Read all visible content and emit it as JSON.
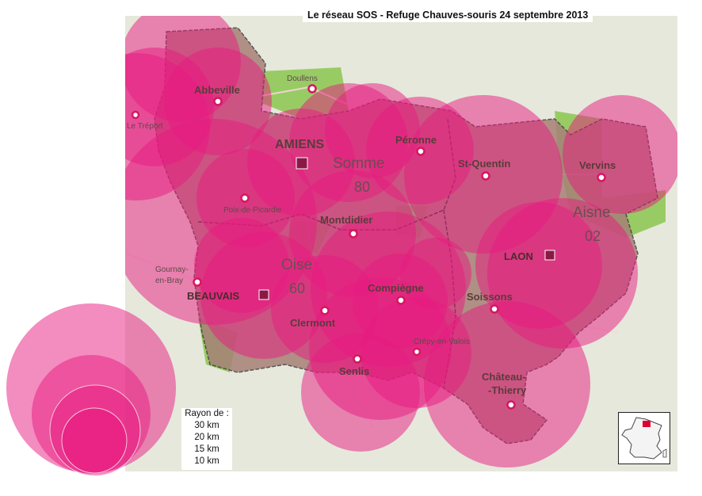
{
  "title": "Le réseau SOS - Refuge Chauves-souris 24 septembre 2013",
  "legend": {
    "heading": "Rayon de :",
    "radii": [
      "30 km",
      "20 km",
      "15 km",
      "10 km"
    ]
  },
  "departments": [
    {
      "name": "Somme",
      "number": "80"
    },
    {
      "name": "Oise",
      "number": "60"
    },
    {
      "name": "Aisne",
      "number": "02"
    }
  ],
  "towns": {
    "abbeville": "Abbeville",
    "doullens": "Doullens",
    "le_treport": "Le Tréport",
    "amiens": "AMIENS",
    "peronne": "Péronne",
    "saint_quentin": "St-Quentin",
    "vervins": "Vervins",
    "poix": "Poix-de-Picardie",
    "montdidier": "Montdidier",
    "laon": "LAON",
    "gournay_1": "Gournay-",
    "gournay_2": "en-Bray",
    "beauvais": "BEAUVAIS",
    "clermont": "Clermont",
    "compiegne": "Compiègne",
    "soissons": "Soissons",
    "crepy": "Crépy-en-Valois",
    "senlis": "Senlis",
    "chateau_1": "Château-",
    "chateau_2": "-Thierry"
  },
  "colors": {
    "circle_fill": "#e8197f",
    "region_fill": "#a78077",
    "land_green": "#8bc64f",
    "background": "#e6e8dc"
  }
}
